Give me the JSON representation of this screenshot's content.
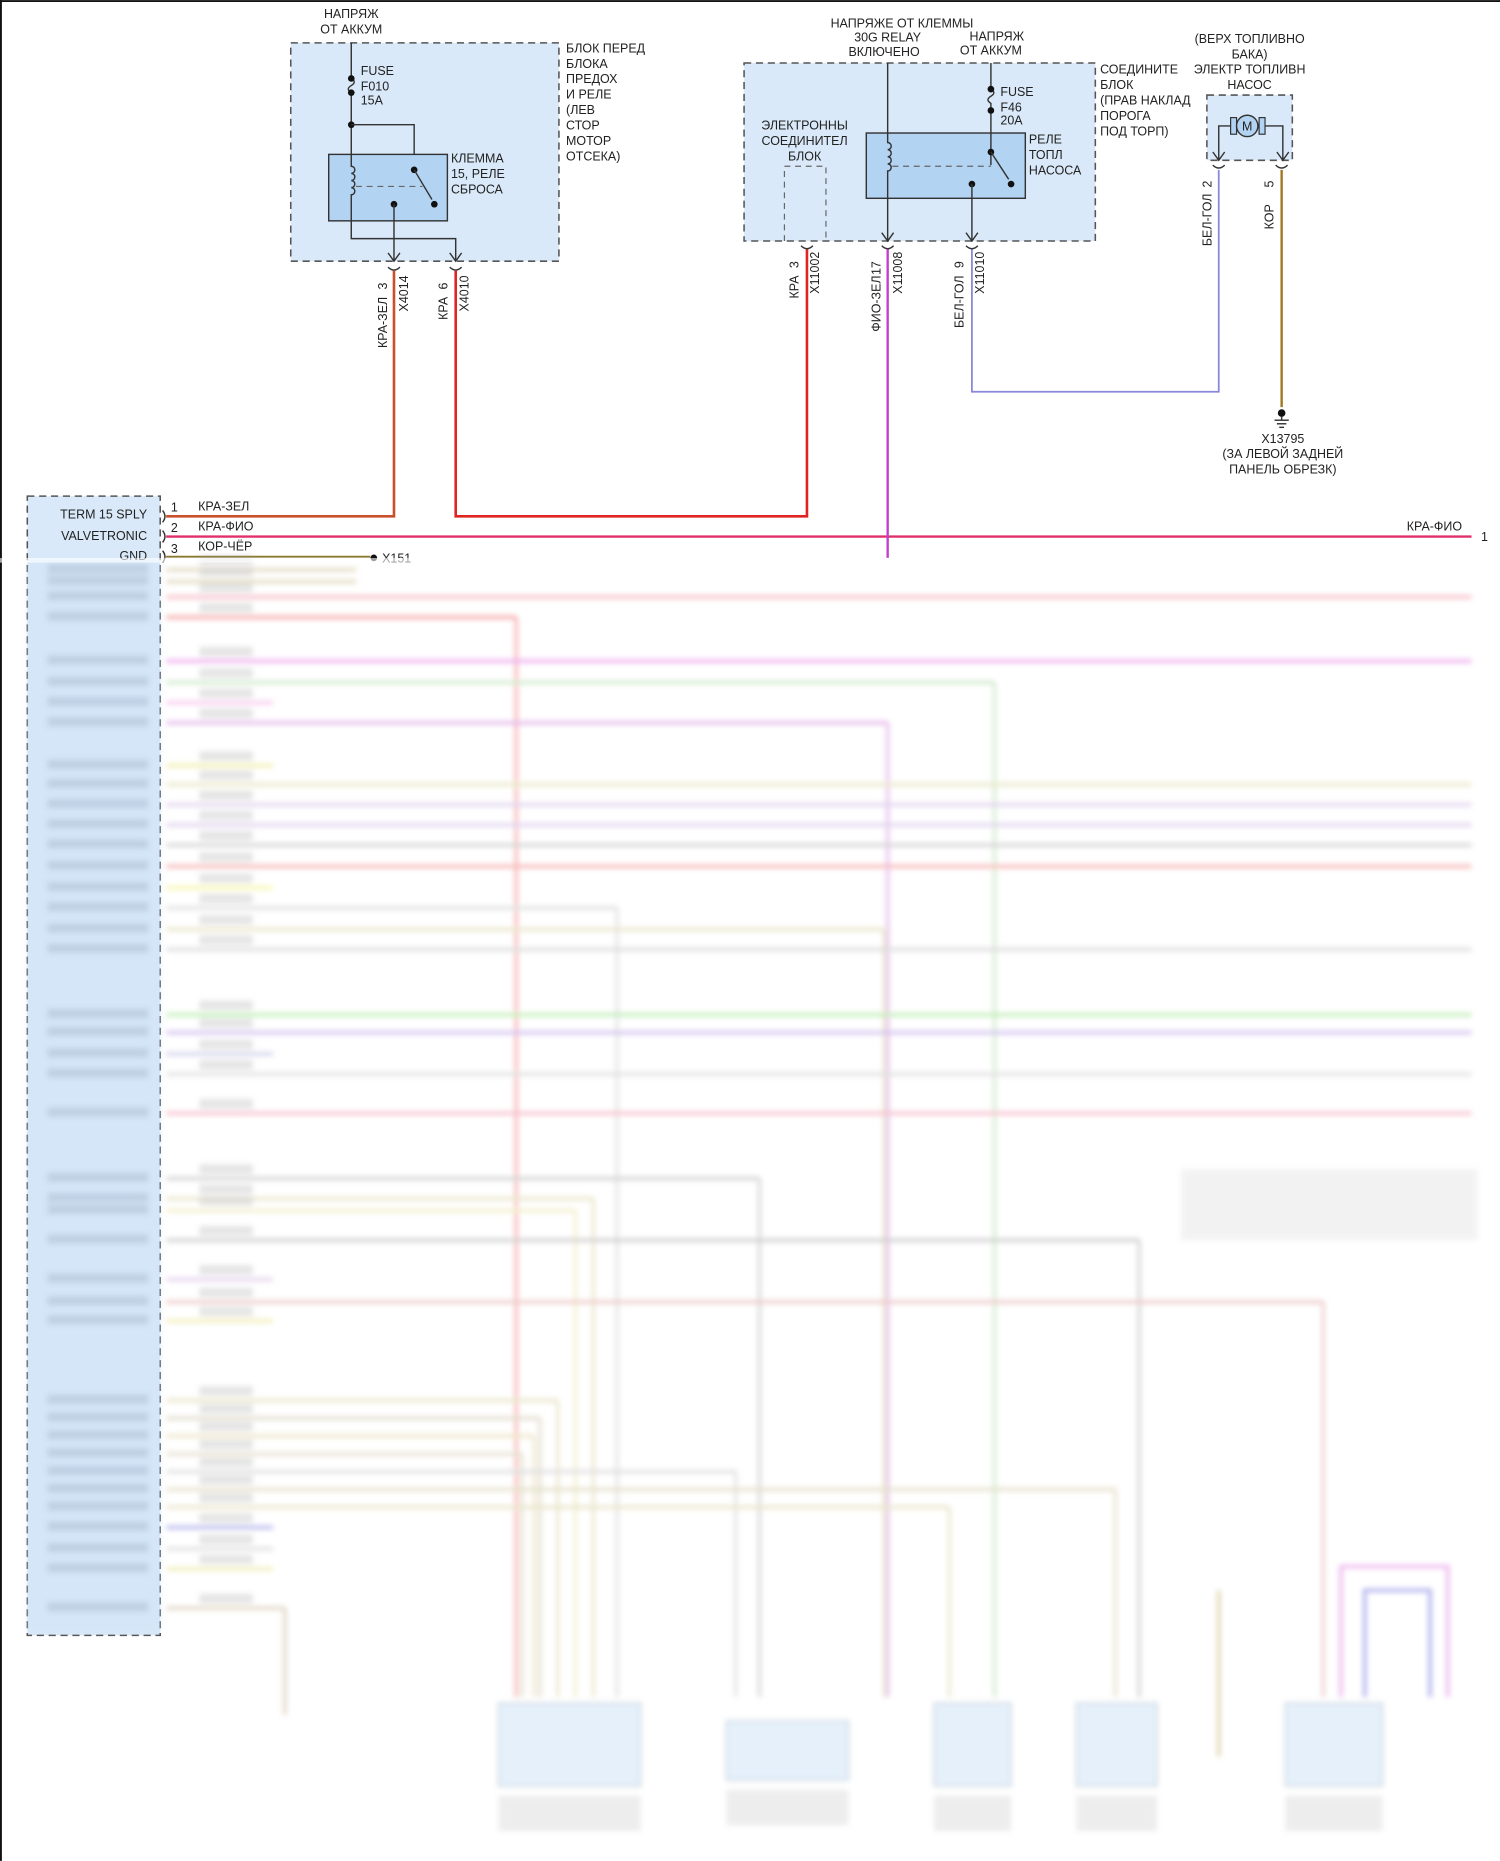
{
  "relay_block_1": {
    "supply_label": [
      "НАПРЯЖ",
      "ОТ АККУМ"
    ],
    "block_label": [
      "БЛОК ПЕРЕД",
      "БЛОКА",
      "ПРЕДОХ",
      "И РЕЛЕ",
      "(ЛЕВ",
      "СТОР",
      "МОТОР",
      "ОТСЕКА)"
    ],
    "fuse_label": [
      "FUSE",
      "F010",
      "15A"
    ],
    "relay_label": [
      "КЛЕММА",
      "15, РЕЛЕ",
      "СБРОСА"
    ],
    "pins": [
      {
        "wire": "КРА-ЗЕЛ",
        "pin": "3",
        "connector": "X4014"
      },
      {
        "wire": "КРА",
        "pin": "6",
        "connector": "X4010"
      }
    ]
  },
  "relay_block_2": {
    "supply_label_1": [
      "НАПРЯЖЕ ОТ КЛЕММЫ",
      "30G RELAY",
      "ВКЛЮЧЕНО"
    ],
    "supply_label_2": [
      "НАПРЯЖ",
      "ОТ АККУМ"
    ],
    "block_label": [
      "СОЕДИНИТЕ",
      "БЛОК",
      "(ПРАВ НАКЛАД",
      "ПОРОГА",
      "ПОД ТОРП)"
    ],
    "electronic_block_label": [
      "ЭЛЕКТРОННЫ",
      "СОЕДИНИТЕЛ",
      "БЛОК"
    ],
    "fuse_label": [
      "FUSE",
      "F46",
      "20A"
    ],
    "relay_label": [
      "РЕЛЕ",
      "ТОПЛ",
      "НАСОСА"
    ],
    "pins": [
      {
        "wire": "КРА",
        "pin": "3",
        "connector": "X11002"
      },
      {
        "wire": "ФИО-ЗЕЛ",
        "pin": "17",
        "connector": "X11008"
      },
      {
        "wire": "БЕЛ-ГОЛ",
        "pin": "9",
        "connector": "X11010"
      }
    ]
  },
  "fuel_pump": {
    "label": [
      "(ВЕРХ ТОПЛИВНО",
      "БАКА)",
      "ЭЛЕКТР ТОПЛИВН",
      "НАСОС"
    ],
    "motor_symbol": "M",
    "pins": [
      {
        "wire": "БЕЛ-ГОЛ",
        "pin": "2"
      },
      {
        "wire": "КОР",
        "pin": "5"
      }
    ],
    "ground": [
      "X13795",
      "(ЗА ЛЕВОЙ ЗАДНЕЙ",
      "ПАНЕЛЬ ОБРЕЗК)"
    ]
  },
  "control_module": {
    "rows": [
      {
        "label": "TERM 15 SPLY",
        "pin": "1",
        "wire": "КРА-ЗЕЛ"
      },
      {
        "label": "VALVETRONIC",
        "pin": "2",
        "wire": "КРА-ФИО"
      },
      {
        "label": "GND",
        "pin": "3",
        "wire": "КОР-ЧЁР"
      }
    ],
    "ground_ref": "X151"
  },
  "right_edge": {
    "wire": "КРА-ФИО",
    "pin": "1"
  },
  "colors": {
    "box_fill": "#d9e9f9",
    "wire_red": "#e02424",
    "wire_red_green": "#c8502a",
    "wire_red_violet": "#e0306a",
    "wire_violet_green": "#c040c8",
    "wire_white_blue": "#8a88d8",
    "wire_brown": "#a07820"
  }
}
